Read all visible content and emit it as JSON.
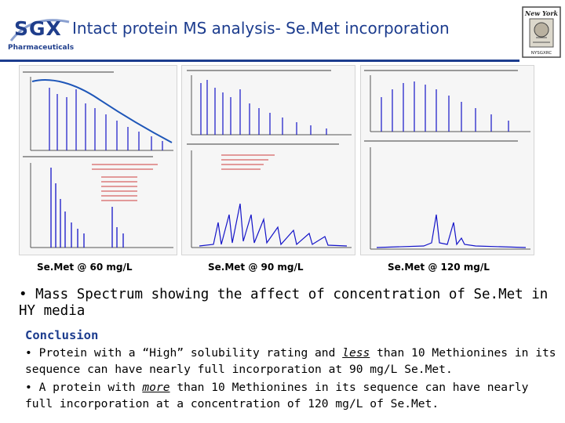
{
  "header": {
    "logo_mark": "SGX",
    "logo_sub": "Pharmaceuticals",
    "title": "Intact protein MS analysis- Se.Met incorporation",
    "badge_top": "New York",
    "badge_bottom": "NYSGXRC"
  },
  "figure": {
    "captions": [
      "Se.Met @ 60 mg/L",
      "Se.Met @ 90 mg/L",
      "Se.Met @ 120 mg/L"
    ]
  },
  "body": {
    "main_bullet": "• Mass Spectrum showing the affect of concentration of Se.Met in HY media",
    "conclusion_heading": "Conclusion",
    "bullet1_a": "• Protein with a “High” solubility rating and ",
    "bullet1_em": "less",
    "bullet1_b": " than 10 Methionines in its sequence can have nearly full incorporation at 90 mg/L Se.Met.",
    "bullet2_a": "• A protein with ",
    "bullet2_em": "more",
    "bullet2_b": " than 10 Methionines in its sequence can have nearly full incorporation at a concentration of 120 mg/L of Se.Met."
  },
  "colors": {
    "brand_blue": "#1c3c8e",
    "spectrum_blue": "#1414c8",
    "annotation_red": "#c81e1e"
  }
}
